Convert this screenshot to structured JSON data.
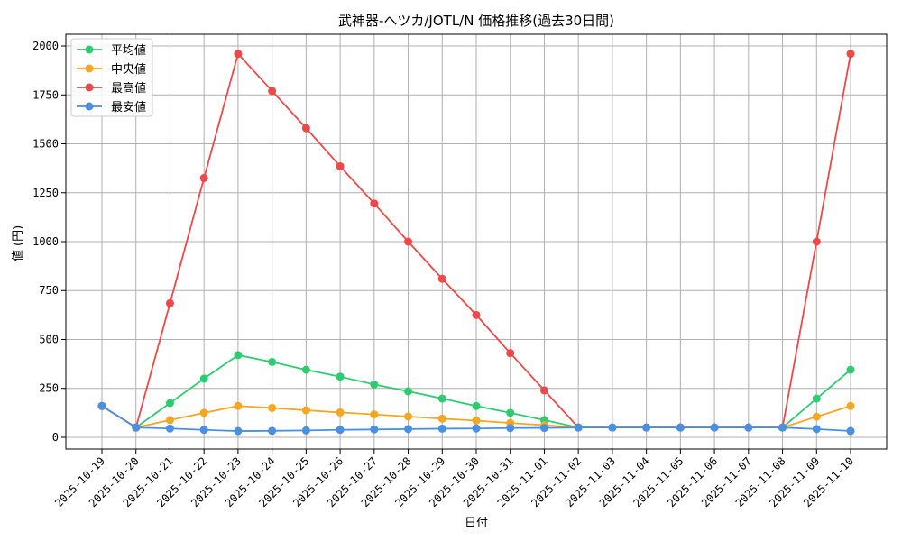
{
  "chart_data": {
    "type": "line",
    "title": "武神器-ヘツカ/JOTL/N 価格推移(過去30日間)",
    "xlabel": "日付",
    "ylabel": "値 (円)",
    "ylim": [
      -60,
      2060
    ],
    "yticks": [
      0,
      250,
      500,
      750,
      1000,
      1250,
      1500,
      1750,
      2000
    ],
    "grid": true,
    "legend_position": "top-left",
    "categories": [
      "2025-10-19",
      "2025-10-20",
      "2025-10-21",
      "2025-10-22",
      "2025-10-23",
      "2025-10-24",
      "2025-10-25",
      "2025-10-26",
      "2025-10-27",
      "2025-10-28",
      "2025-10-29",
      "2025-10-30",
      "2025-10-31",
      "2025-11-01",
      "2025-11-02",
      "2025-11-03",
      "2025-11-04",
      "2025-11-05",
      "2025-11-06",
      "2025-11-07",
      "2025-11-08",
      "2025-11-09",
      "2025-11-10"
    ],
    "series": [
      {
        "name": "平均値",
        "color": "#2ecc71",
        "values": [
          160,
          50,
          175,
          300,
          420,
          385,
          345,
          310,
          270,
          235,
          198,
          160,
          125,
          88,
          50,
          50,
          50,
          50,
          50,
          50,
          50,
          198,
          345
        ]
      },
      {
        "name": "中央値",
        "color": "#f5a623",
        "values": [
          160,
          50,
          88,
          125,
          160,
          150,
          138,
          127,
          117,
          106,
          95,
          85,
          73,
          62,
          50,
          50,
          50,
          50,
          50,
          50,
          50,
          105,
          160
        ]
      },
      {
        "name": "最高値",
        "color": "#f04848",
        "values": [
          160,
          50,
          685,
          1325,
          1960,
          1770,
          1580,
          1385,
          1195,
          1000,
          810,
          625,
          430,
          240,
          50,
          50,
          50,
          50,
          50,
          50,
          50,
          1000,
          1960
        ]
      },
      {
        "name": "最安値",
        "color": "#4a90e2",
        "values": [
          160,
          50,
          45,
          38,
          32,
          33,
          35,
          38,
          40,
          42,
          44,
          45,
          47,
          48,
          50,
          50,
          50,
          50,
          50,
          50,
          50,
          42,
          32
        ]
      }
    ]
  }
}
